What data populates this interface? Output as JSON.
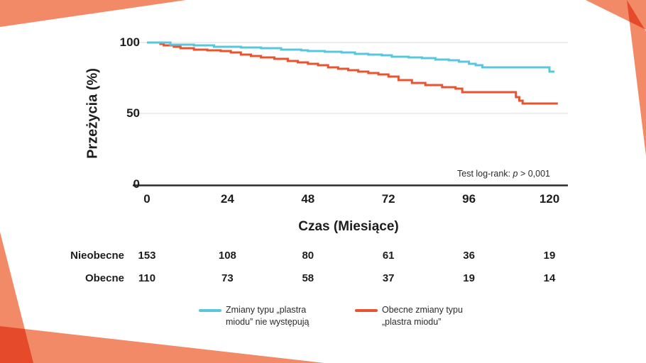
{
  "decor_color": "#F28A68",
  "chart_data": {
    "type": "line",
    "variant": "kaplan-meier-step",
    "title": "",
    "xlabel": "Czas (Miesiące)",
    "ylabel": "Przeżycia (%)",
    "xlim": [
      0,
      126
    ],
    "ylim": [
      0,
      100
    ],
    "xticks": [
      0,
      24,
      48,
      72,
      96,
      120
    ],
    "yticks": [
      100,
      50,
      0
    ],
    "grid": "horizontal gridlines at y=50 and y=100",
    "legend_position": "bottom",
    "annotation": {
      "prefix": "Test log-rank: ",
      "stat": "p",
      "suffix": " > 0,001"
    },
    "series": [
      {
        "name": "Zmiany typu „plastra miodu” nie występują",
        "legend_lines": [
          "Zmiany typu „plastra",
          "miodu” nie występują"
        ],
        "color": "#58C7DC",
        "points": [
          [
            0,
            100
          ],
          [
            6,
            100
          ],
          [
            7,
            98.5
          ],
          [
            14,
            98
          ],
          [
            20,
            97
          ],
          [
            28,
            96.5
          ],
          [
            34,
            96
          ],
          [
            40,
            95
          ],
          [
            46,
            94.5
          ],
          [
            48,
            94
          ],
          [
            53,
            93.5
          ],
          [
            58,
            93
          ],
          [
            62,
            92
          ],
          [
            66,
            91.5
          ],
          [
            70,
            91
          ],
          [
            73,
            90
          ],
          [
            78,
            89.5
          ],
          [
            82,
            89
          ],
          [
            86,
            88
          ],
          [
            90,
            87.5
          ],
          [
            93,
            86.5
          ],
          [
            96,
            85
          ],
          [
            98,
            84
          ],
          [
            100,
            82.5
          ],
          [
            118,
            82.5
          ],
          [
            120,
            79.5
          ],
          [
            121.5,
            79.5
          ]
        ]
      },
      {
        "name": "Obecne zmiany typu „plastra miodu”",
        "legend_lines": [
          "Obecne zmiany typu",
          "„plastra miodu”"
        ],
        "color": "#E8542F",
        "points": [
          [
            0,
            100
          ],
          [
            4,
            99
          ],
          [
            5,
            98
          ],
          [
            8,
            97
          ],
          [
            10,
            96
          ],
          [
            14,
            95
          ],
          [
            18,
            94.5
          ],
          [
            22,
            94
          ],
          [
            25,
            93
          ],
          [
            28,
            91.5
          ],
          [
            31,
            90.5
          ],
          [
            34,
            89.5
          ],
          [
            38,
            88.5
          ],
          [
            42,
            87
          ],
          [
            45,
            86
          ],
          [
            48,
            85
          ],
          [
            51,
            84
          ],
          [
            54,
            82.5
          ],
          [
            57,
            81.5
          ],
          [
            60,
            80.5
          ],
          [
            63,
            79.5
          ],
          [
            66,
            78.5
          ],
          [
            69,
            77.5
          ],
          [
            72,
            76
          ],
          [
            75,
            73.5
          ],
          [
            79,
            71.5
          ],
          [
            83,
            70
          ],
          [
            88,
            68.5
          ],
          [
            92,
            67.5
          ],
          [
            94,
            65
          ],
          [
            109,
            65
          ],
          [
            110,
            61.5
          ],
          [
            111,
            59
          ],
          [
            112,
            57
          ],
          [
            122.5,
            57
          ]
        ]
      }
    ],
    "risk_table": {
      "rows": [
        {
          "label": "Nieobecne",
          "values": [
            "153",
            "108",
            "80",
            "61",
            "36",
            "19"
          ]
        },
        {
          "label": "Obecne",
          "values": [
            "110",
            "73",
            "58",
            "37",
            "19",
            "14"
          ]
        }
      ]
    }
  }
}
